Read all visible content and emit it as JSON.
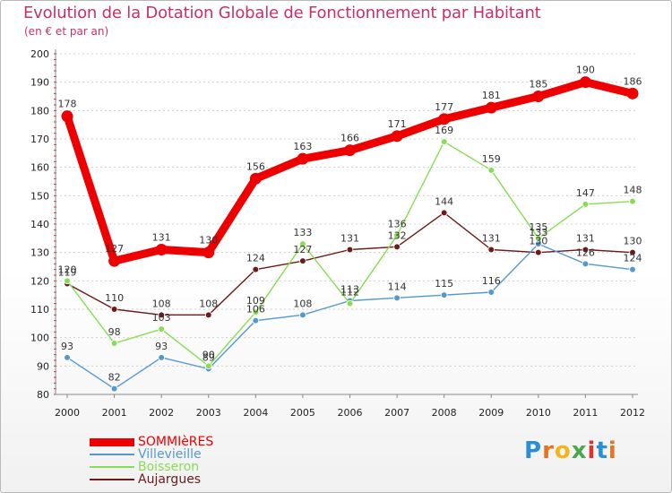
{
  "title": "Evolution de la Dotation Globale de Fonctionnement par Habitant",
  "subtitle": "(en € et par an)",
  "brand": {
    "text": "Proxiti",
    "colors": [
      "#2b8fd6",
      "#e8731c",
      "#f2b51e",
      "#4aa84a",
      "#d9352f",
      "#2b8fd6",
      "#e8731c"
    ]
  },
  "chart_data": {
    "type": "line",
    "title": "Evolution de la Dotation Globale de Fonctionnement par Habitant",
    "subtitle": "(en € et par an)",
    "xlabel": "",
    "ylabel": "",
    "categories": [
      "2000",
      "2001",
      "2002",
      "2003",
      "2004",
      "2005",
      "2006",
      "2007",
      "2008",
      "2009",
      "2010",
      "2011",
      "2012"
    ],
    "ylim": [
      80,
      200
    ],
    "yticks": [
      80,
      90,
      100,
      110,
      120,
      130,
      140,
      150,
      160,
      170,
      180,
      190,
      200
    ],
    "legend_position": "bottom-left",
    "series": [
      {
        "name": "SOMMIèRES",
        "color": "#ee0000",
        "values": [
          178,
          127,
          131,
          130,
          156,
          163,
          166,
          171,
          177,
          181,
          185,
          190,
          186
        ],
        "labels": [
          "178",
          "127",
          "131",
          "130",
          "156",
          "163",
          "166",
          "171",
          "177",
          "181",
          "185",
          "190",
          "186"
        ]
      },
      {
        "name": "Villevieille",
        "color": "#5599cc",
        "values": [
          93,
          82,
          93,
          89,
          106,
          108,
          113,
          114,
          115,
          116,
          133,
          126,
          124
        ],
        "labels": [
          "93",
          "82",
          "93",
          "89",
          "106",
          "108",
          "113",
          "114",
          "115",
          "116",
          "133",
          "126",
          "124"
        ]
      },
      {
        "name": "Boisseron",
        "color": "#88dd55",
        "values": [
          120,
          98,
          103,
          90,
          109,
          133,
          112,
          136,
          169,
          159,
          135,
          147,
          148
        ],
        "labels": [
          "120",
          "98",
          "103",
          "90",
          "109",
          "133",
          "112",
          "136",
          "169",
          "159",
          "135",
          "147",
          "148"
        ]
      },
      {
        "name": "Aujargues",
        "color": "#6e1a1a",
        "values": [
          119,
          110,
          108,
          108,
          124,
          127,
          131,
          132,
          144,
          131,
          130,
          131,
          130
        ],
        "labels": [
          "119",
          "110",
          "108",
          "108",
          "124",
          "127",
          "131",
          "132",
          "144",
          "131",
          "130",
          "131",
          "130"
        ]
      }
    ]
  }
}
